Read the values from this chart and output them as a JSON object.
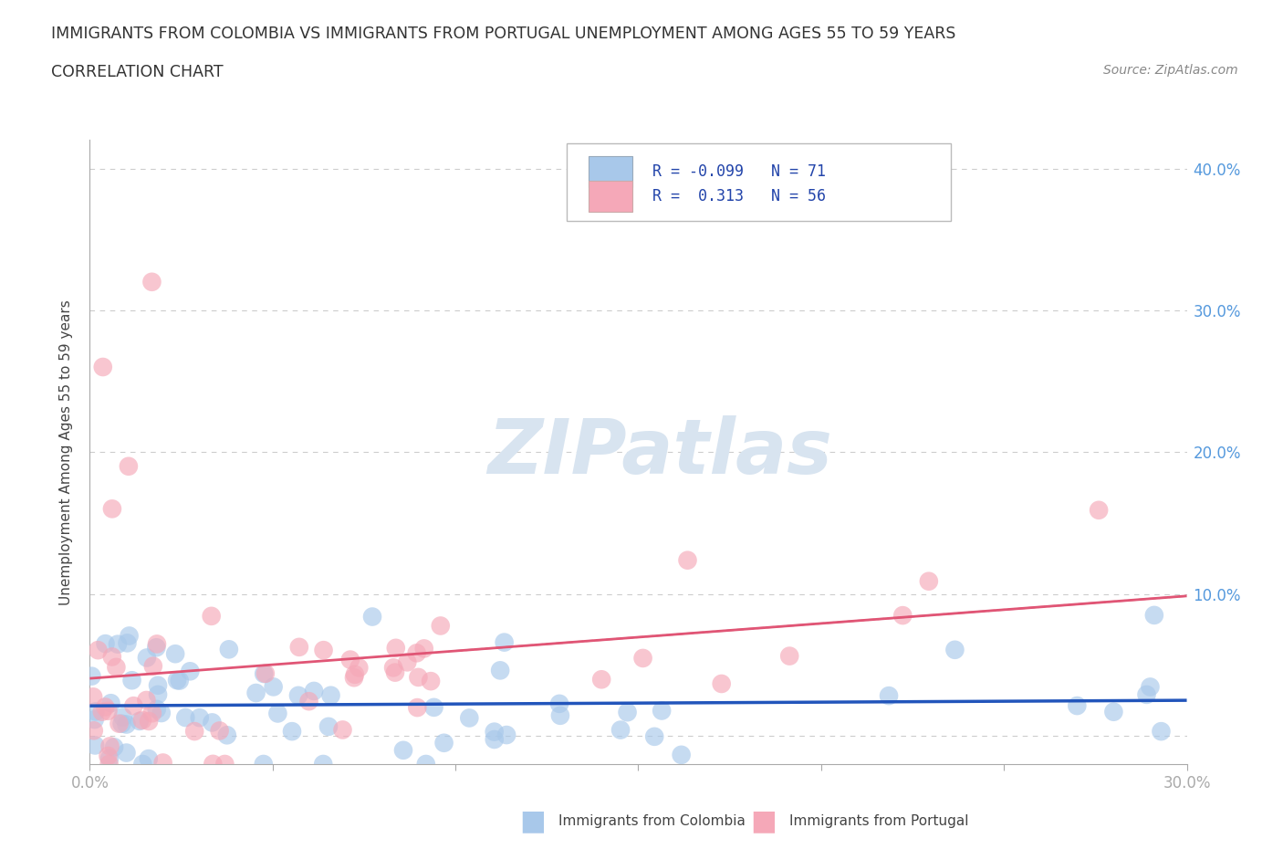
{
  "title_line1": "IMMIGRANTS FROM COLOMBIA VS IMMIGRANTS FROM PORTUGAL UNEMPLOYMENT AMONG AGES 55 TO 59 YEARS",
  "title_line2": "CORRELATION CHART",
  "source_text": "Source: ZipAtlas.com",
  "ylabel": "Unemployment Among Ages 55 to 59 years",
  "xlim": [
    0.0,
    0.3
  ],
  "ylim": [
    -0.02,
    0.42
  ],
  "colombia_R": -0.099,
  "colombia_N": 71,
  "portugal_R": 0.313,
  "portugal_N": 56,
  "colombia_color": "#a8c8ea",
  "portugal_color": "#f5a8b8",
  "colombia_line_color": "#2255bb",
  "portugal_line_color": "#e05575",
  "watermark_text": "ZIPatlas",
  "background_color": "#ffffff",
  "grid_color": "#cccccc",
  "legend_R_color": "#2244aa",
  "tick_color": "#5599dd",
  "title_color": "#333333",
  "ylabel_color": "#444444"
}
